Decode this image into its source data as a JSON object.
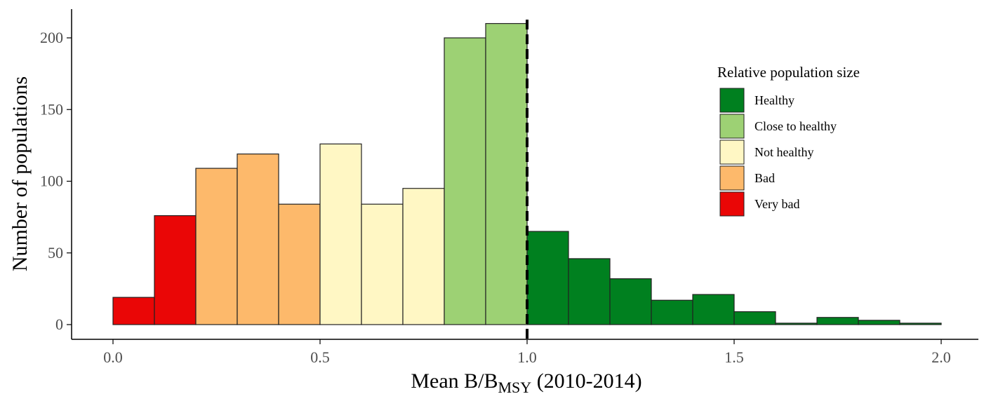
{
  "chart_data": {
    "type": "bar",
    "subtype": "histogram",
    "title": "",
    "xlabel": {
      "prefix": "Mean B/B",
      "subscript": "MSY",
      "suffix": " (2010-2014)"
    },
    "ylabel": "Number of populations",
    "xlim": [
      0.0,
      2.0
    ],
    "ylim": [
      0,
      210
    ],
    "x_ticks": [
      0.0,
      0.5,
      1.0,
      1.5,
      2.0
    ],
    "x_tick_labels": [
      "0.0",
      "0.5",
      "1.0",
      "1.5",
      "2.0"
    ],
    "y_ticks": [
      0,
      50,
      100,
      150,
      200
    ],
    "y_tick_labels": [
      "0",
      "50",
      "100",
      "150",
      "200"
    ],
    "bin_width": 0.1,
    "bins": [
      {
        "start": 0.0,
        "end": 0.1,
        "count": 19,
        "category": "Very bad"
      },
      {
        "start": 0.1,
        "end": 0.2,
        "count": 76,
        "category": "Very bad"
      },
      {
        "start": 0.2,
        "end": 0.3,
        "count": 109,
        "category": "Bad"
      },
      {
        "start": 0.3,
        "end": 0.4,
        "count": 119,
        "category": "Bad"
      },
      {
        "start": 0.4,
        "end": 0.5,
        "count": 84,
        "category": "Bad"
      },
      {
        "start": 0.5,
        "end": 0.6,
        "count": 126,
        "category": "Not healthy"
      },
      {
        "start": 0.6,
        "end": 0.7,
        "count": 84,
        "category": "Not healthy"
      },
      {
        "start": 0.7,
        "end": 0.8,
        "count": 95,
        "category": "Not healthy"
      },
      {
        "start": 0.8,
        "end": 0.9,
        "count": 200,
        "category": "Close to healthy"
      },
      {
        "start": 0.9,
        "end": 1.0,
        "count": 210,
        "category": "Close to healthy"
      },
      {
        "start": 1.0,
        "end": 1.1,
        "count": 65,
        "category": "Healthy"
      },
      {
        "start": 1.1,
        "end": 1.2,
        "count": 46,
        "category": "Healthy"
      },
      {
        "start": 1.2,
        "end": 1.3,
        "count": 32,
        "category": "Healthy"
      },
      {
        "start": 1.3,
        "end": 1.4,
        "count": 17,
        "category": "Healthy"
      },
      {
        "start": 1.4,
        "end": 1.5,
        "count": 21,
        "category": "Healthy"
      },
      {
        "start": 1.5,
        "end": 1.6,
        "count": 9,
        "category": "Healthy"
      },
      {
        "start": 1.6,
        "end": 1.7,
        "count": 1,
        "category": "Healthy"
      },
      {
        "start": 1.7,
        "end": 1.8,
        "count": 5,
        "category": "Healthy"
      },
      {
        "start": 1.8,
        "end": 1.9,
        "count": 3,
        "category": "Healthy"
      },
      {
        "start": 1.9,
        "end": 2.0,
        "count": 1,
        "category": "Healthy"
      }
    ],
    "reference_line": {
      "x": 1.0,
      "style": "dashed",
      "color": "#000000"
    },
    "legend": {
      "title": "Relative population size",
      "position": "right",
      "entries": [
        {
          "label": "Healthy",
          "color": "#00801f"
        },
        {
          "label": "Close to healthy",
          "color": "#9dd174"
        },
        {
          "label": "Not healthy",
          "color": "#fff7c4"
        },
        {
          "label": "Bad",
          "color": "#fdb96b"
        },
        {
          "label": "Very bad",
          "color": "#ea0606"
        }
      ]
    },
    "grid": false
  }
}
